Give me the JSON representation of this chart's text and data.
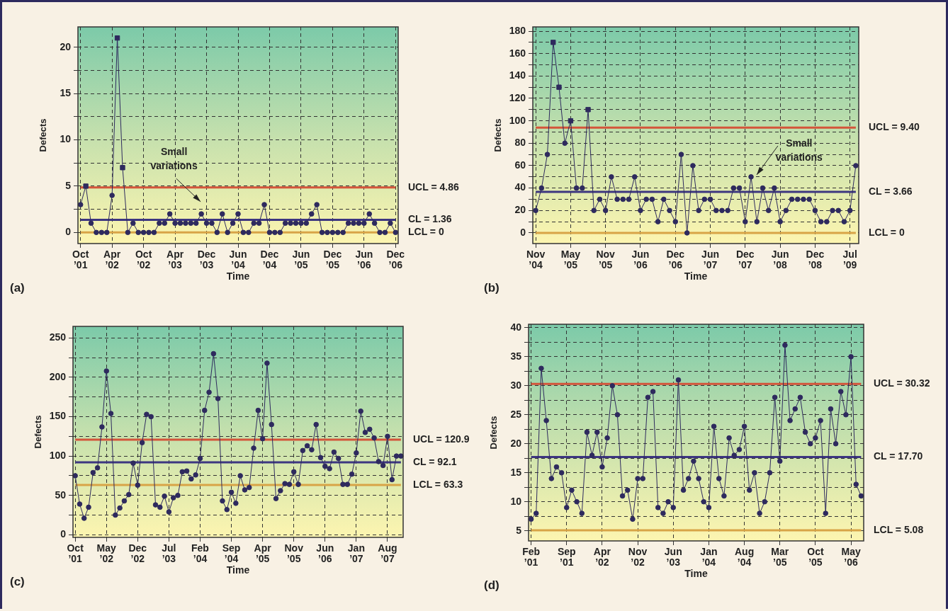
{
  "chart_data": [
    {
      "type": "line",
      "title": "(a)",
      "xlabel": "Time",
      "ylabel": "Defects",
      "grid": true,
      "marker": "circle",
      "categories": [
        "Oct ’01",
        null,
        null,
        null,
        null,
        null,
        "Apr ’02",
        null,
        null,
        null,
        null,
        null,
        "Oct ’02",
        null,
        null,
        null,
        null,
        null,
        "Apr ’03",
        null,
        null,
        null,
        null,
        null,
        "Dec ’03",
        null,
        null,
        null,
        null,
        null,
        "Jun ’04",
        null,
        null,
        null,
        null,
        null,
        "Dec ’04",
        null,
        null,
        null,
        null,
        null,
        "Jun ’05",
        null,
        null,
        null,
        null,
        null,
        "Dec ’05",
        null,
        null,
        null,
        null,
        null,
        "Jun ’06",
        null,
        null,
        null,
        null,
        null,
        "Dec ’06"
      ],
      "ylim": [
        -1.2,
        22.2
      ],
      "yticks": [
        0,
        {
          "value": 2.5,
          "label": null
        },
        5,
        {
          "value": 7.5,
          "label": null
        },
        10,
        {
          "value": 12.5,
          "label": null
        },
        15,
        {
          "value": 17.5,
          "label": null
        },
        20
      ],
      "series": [
        {
          "color": "#2e2a5e",
          "values": [
            3,
            5,
            1,
            0,
            0,
            0,
            4,
            21,
            7,
            0,
            1,
            0,
            0,
            0,
            0,
            1,
            1,
            2,
            1,
            1,
            1,
            1,
            1,
            2,
            1,
            1,
            0,
            2,
            0,
            1,
            2,
            0,
            0,
            1,
            1,
            3,
            0,
            0,
            0,
            1,
            1,
            1,
            1,
            1,
            2,
            3,
            0,
            0,
            0,
            0,
            0,
            1,
            1,
            1,
            1,
            2,
            1,
            0,
            0,
            1,
            0
          ]
        },
        {
          "type": "scatter",
          "marker": "square",
          "color": "#2e2a5e",
          "values": [
            null,
            5,
            null,
            null,
            null,
            null,
            null,
            21,
            7,
            null,
            null,
            null,
            null,
            null,
            null,
            null,
            null,
            null,
            null,
            null,
            null,
            null,
            null,
            null,
            null,
            null,
            null,
            null,
            null,
            null,
            null,
            null,
            null,
            null,
            null,
            null,
            null,
            null,
            null,
            null,
            null,
            null,
            null,
            null,
            null,
            null,
            null,
            null,
            null,
            null,
            null,
            null,
            null,
            null,
            null,
            null,
            null,
            null,
            null,
            null,
            null
          ]
        }
      ],
      "ref_lines": [
        {
          "axis": "y",
          "value": 4.86,
          "label": "UCL = 4.86",
          "color": "#d4553a"
        },
        {
          "axis": "y",
          "value": 1.36,
          "label": "CL = 1.36",
          "color": "#3d3680"
        },
        {
          "axis": "y",
          "value": 0,
          "label": "LCL = 0",
          "color": "#d8a447"
        }
      ],
      "annotations": [
        "Small variations"
      ]
    },
    {
      "type": "line",
      "title": "(b)",
      "xlabel": "Time",
      "ylabel": "Defects",
      "grid": true,
      "marker": "circle",
      "categories": [
        "Nov ’04",
        null,
        null,
        null,
        null,
        null,
        "May ’05",
        null,
        null,
        null,
        null,
        null,
        "Nov ’05",
        null,
        null,
        null,
        null,
        null,
        "Jun ’06",
        null,
        null,
        null,
        null,
        null,
        "Dec ’06",
        null,
        null,
        null,
        null,
        null,
        "Jun ’07",
        null,
        null,
        null,
        null,
        null,
        "Dec ’07",
        null,
        null,
        null,
        null,
        null,
        "Jun ’08",
        null,
        null,
        null,
        null,
        null,
        "Dec ’08",
        null,
        null,
        null,
        null,
        null,
        "Jul ’09",
        null
      ],
      "ylim": [
        -9.5,
        183.8
      ],
      "yticks": [
        0,
        {
          "value": 10,
          "label": null
        },
        20,
        {
          "value": 30,
          "label": null
        },
        40,
        {
          "value": 50,
          "label": null
        },
        60,
        {
          "value": 70,
          "label": null
        },
        80,
        {
          "value": 90,
          "label": null
        },
        100,
        {
          "value": 110,
          "label": null
        },
        120,
        {
          "value": 130,
          "label": null
        },
        140,
        {
          "value": 150,
          "label": null
        },
        160,
        {
          "value": 170,
          "label": null
        },
        180
      ],
      "series": [
        {
          "color": "#2e2a5e",
          "values": [
            20,
            40,
            70,
            170,
            130,
            80,
            100,
            40,
            40,
            110,
            20,
            30,
            20,
            50,
            30,
            30,
            30,
            50,
            20,
            30,
            30,
            10,
            30,
            20,
            10,
            70,
            0,
            60,
            20,
            30,
            30,
            20,
            20,
            20,
            40,
            40,
            10,
            50,
            10,
            40,
            20,
            40,
            10,
            20,
            30,
            30,
            30,
            30,
            20,
            10,
            10,
            20,
            20,
            10,
            20,
            60
          ]
        },
        {
          "type": "scatter",
          "marker": "square",
          "color": "#2e2a5e",
          "values": [
            null,
            null,
            null,
            170,
            130,
            null,
            100,
            null,
            null,
            110,
            null,
            null,
            null,
            null,
            null,
            null,
            null,
            null,
            null,
            null,
            null,
            null,
            null,
            null,
            null,
            null,
            null,
            null,
            null,
            null,
            null,
            null,
            null,
            null,
            null,
            null,
            null,
            null,
            null,
            null,
            null,
            null,
            null,
            null,
            null,
            null,
            null,
            null,
            null,
            null,
            null,
            null,
            null,
            null,
            null,
            null
          ]
        }
      ],
      "ref_lines": [
        {
          "axis": "y",
          "value": 94,
          "color": "#d4553a"
        },
        {
          "axis": "y",
          "value": 36.6,
          "color": "#3d3680"
        },
        {
          "axis": "y",
          "value": 0,
          "label": "LCL = 0",
          "color": "#d8a447"
        }
      ],
      "annotations": [
        "Small variations",
        "UCL = 9.40",
        "CL = 3.66"
      ]
    },
    {
      "type": "line",
      "title": "(c)",
      "xlabel": "Time",
      "ylabel": "Defects",
      "grid": true,
      "marker": "circle",
      "categories": [
        "Oct ’01",
        null,
        null,
        null,
        null,
        null,
        null,
        "May ’02",
        null,
        null,
        null,
        null,
        null,
        null,
        "Dec ’02",
        null,
        null,
        null,
        null,
        null,
        null,
        "Jul ’03",
        null,
        null,
        null,
        null,
        null,
        null,
        "Feb ’04",
        null,
        null,
        null,
        null,
        null,
        null,
        "Sep ’04",
        null,
        null,
        null,
        null,
        null,
        null,
        "Apr ’05",
        null,
        null,
        null,
        null,
        null,
        null,
        "Nov ’05",
        null,
        null,
        null,
        null,
        null,
        null,
        "Jun ’06",
        null,
        null,
        null,
        null,
        null,
        null,
        "Jan ’07",
        null,
        null,
        null,
        null,
        null,
        null,
        "Aug ’07",
        null,
        null,
        null
      ],
      "ylim": [
        -3.3,
        264.7
      ],
      "yticks": [
        0,
        {
          "value": 25,
          "label": null
        },
        50,
        {
          "value": 75,
          "label": null
        },
        100,
        {
          "value": 125,
          "label": null
        },
        150,
        {
          "value": 175,
          "label": null
        },
        200,
        {
          "value": 225,
          "label": null
        },
        250
      ],
      "series": [
        {
          "color": "#2e2a5e",
          "values": [
            75,
            39,
            21,
            35,
            79,
            85,
            137,
            208,
            154,
            25,
            34,
            43,
            51,
            91,
            63,
            117,
            153,
            150,
            38,
            35,
            49,
            29,
            47,
            50,
            80,
            81,
            71,
            76,
            97,
            158,
            181,
            230,
            173,
            43,
            32,
            54,
            40,
            75,
            57,
            60,
            110,
            158,
            122,
            218,
            140,
            46,
            56,
            65,
            64,
            80,
            64,
            107,
            113,
            108,
            140,
            98,
            87,
            84,
            105,
            97,
            64,
            64,
            77,
            104,
            157,
            130,
            134,
            123,
            93,
            88,
            125,
            70,
            100,
            100
          ]
        }
      ],
      "ref_lines": [
        {
          "axis": "y",
          "value": 120.9,
          "label": "UCL = 120.9",
          "color": "#d4553a"
        },
        {
          "axis": "y",
          "value": 92.1,
          "label": "CL = 92.1",
          "color": "#3d3680"
        },
        {
          "axis": "y",
          "value": 63.3,
          "label": "LCL = 63.3",
          "color": "#d8a447"
        }
      ]
    },
    {
      "type": "line",
      "title": "(d)",
      "xlabel": "Time",
      "ylabel": "Defects",
      "grid": true,
      "marker": "circle",
      "categories": [
        "Feb ’01",
        null,
        null,
        null,
        null,
        null,
        null,
        "Sep ’01",
        null,
        null,
        null,
        null,
        null,
        null,
        "Apr ’02",
        null,
        null,
        null,
        null,
        null,
        null,
        "Nov ’02",
        null,
        null,
        null,
        null,
        null,
        null,
        "Jun ’03",
        null,
        null,
        null,
        null,
        null,
        null,
        "Jan ’04",
        null,
        null,
        null,
        null,
        null,
        null,
        "Aug ’04",
        null,
        null,
        null,
        null,
        null,
        null,
        "Mar ’05",
        null,
        null,
        null,
        null,
        null,
        null,
        "Oct ’05",
        null,
        null,
        null,
        null,
        null,
        null,
        "May ’06",
        null,
        null
      ],
      "ylim": [
        3.25,
        40.6
      ],
      "yticks": [
        5,
        {
          "value": 7.5,
          "label": null
        },
        10,
        {
          "value": 12.5,
          "label": null
        },
        15,
        {
          "value": 17.5,
          "label": null
        },
        20,
        {
          "value": 22.5,
          "label": null
        },
        25,
        {
          "value": 27.5,
          "label": null
        },
        30,
        {
          "value": 32.5,
          "label": null
        },
        35,
        {
          "value": 37.5,
          "label": null
        },
        40
      ],
      "series": [
        {
          "color": "#2e2a5e",
          "values": [
            7,
            8,
            33,
            24,
            14,
            16,
            15,
            9,
            12,
            10,
            8,
            22,
            18,
            22,
            16,
            21,
            30,
            25,
            11,
            12,
            7,
            14,
            14,
            28,
            29,
            9,
            8,
            10,
            9,
            31,
            12,
            14,
            17,
            14,
            10,
            9,
            23,
            14,
            11,
            21,
            18,
            19,
            23,
            12,
            15,
            8,
            10,
            15,
            28,
            17,
            37,
            24,
            26,
            28,
            22,
            20,
            21,
            24,
            8,
            26,
            20,
            29,
            25,
            35,
            13,
            11
          ]
        }
      ],
      "ref_lines": [
        {
          "axis": "y",
          "value": 30.32,
          "label": "UCL = 30.32",
          "color": "#d4553a"
        },
        {
          "axis": "y",
          "value": 17.7,
          "label": "CL = 17.70",
          "color": "#3d3680"
        },
        {
          "axis": "y",
          "value": 5.08,
          "label": "LCL = 5.08",
          "color": "#d8a447"
        }
      ]
    }
  ]
}
